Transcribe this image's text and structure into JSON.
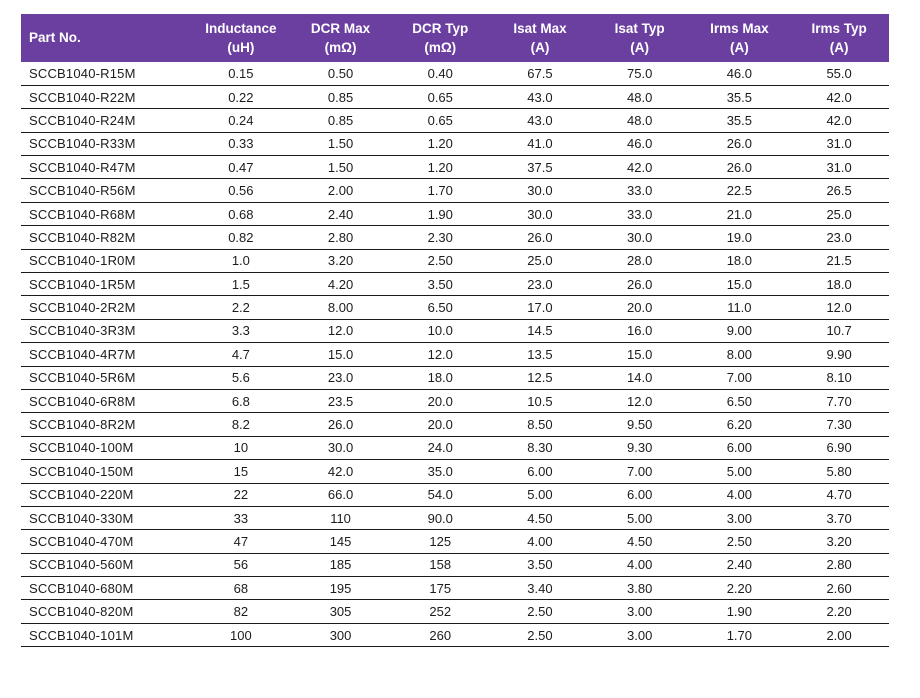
{
  "colors": {
    "header_bg": "#6B3FA0",
    "header_text": "#FFFFFF",
    "row_line": "#1A1A1A",
    "body_text": "#1C1C1C",
    "page_bg": "#FFFFFF"
  },
  "table": {
    "columns": [
      {
        "label": "Part No.",
        "unit": ""
      },
      {
        "label": "Inductance",
        "unit": "(uH)"
      },
      {
        "label": "DCR Max",
        "unit": "(mΩ)"
      },
      {
        "label": "DCR Typ",
        "unit": "(mΩ)"
      },
      {
        "label": "Isat Max",
        "unit": "(A)"
      },
      {
        "label": "Isat Typ",
        "unit": "(A)"
      },
      {
        "label": "Irms Max",
        "unit": "(A)"
      },
      {
        "label": "Irms Typ",
        "unit": "(A)"
      }
    ],
    "rows": [
      [
        "SCCB1040-R15M",
        "0.15",
        "0.50",
        "0.40",
        "67.5",
        "75.0",
        "46.0",
        "55.0"
      ],
      [
        "SCCB1040-R22M",
        "0.22",
        "0.85",
        "0.65",
        "43.0",
        "48.0",
        "35.5",
        "42.0"
      ],
      [
        "SCCB1040-R24M",
        "0.24",
        "0.85",
        "0.65",
        "43.0",
        "48.0",
        "35.5",
        "42.0"
      ],
      [
        "SCCB1040-R33M",
        "0.33",
        "1.50",
        "1.20",
        "41.0",
        "46.0",
        "26.0",
        "31.0"
      ],
      [
        "SCCB1040-R47M",
        "0.47",
        "1.50",
        "1.20",
        "37.5",
        "42.0",
        "26.0",
        "31.0"
      ],
      [
        "SCCB1040-R56M",
        "0.56",
        "2.00",
        "1.70",
        "30.0",
        "33.0",
        "22.5",
        "26.5"
      ],
      [
        "SCCB1040-R68M",
        "0.68",
        "2.40",
        "1.90",
        "30.0",
        "33.0",
        "21.0",
        "25.0"
      ],
      [
        "SCCB1040-R82M",
        "0.82",
        "2.80",
        "2.30",
        "26.0",
        "30.0",
        "19.0",
        "23.0"
      ],
      [
        "SCCB1040-1R0M",
        "1.0",
        "3.20",
        "2.50",
        "25.0",
        "28.0",
        "18.0",
        "21.5"
      ],
      [
        "SCCB1040-1R5M",
        "1.5",
        "4.20",
        "3.50",
        "23.0",
        "26.0",
        "15.0",
        "18.0"
      ],
      [
        "SCCB1040-2R2M",
        "2.2",
        "8.00",
        "6.50",
        "17.0",
        "20.0",
        "11.0",
        "12.0"
      ],
      [
        "SCCB1040-3R3M",
        "3.3",
        "12.0",
        "10.0",
        "14.5",
        "16.0",
        "9.00",
        "10.7"
      ],
      [
        "SCCB1040-4R7M",
        "4.7",
        "15.0",
        "12.0",
        "13.5",
        "15.0",
        "8.00",
        "9.90"
      ],
      [
        "SCCB1040-5R6M",
        "5.6",
        "23.0",
        "18.0",
        "12.5",
        "14.0",
        "7.00",
        "8.10"
      ],
      [
        "SCCB1040-6R8M",
        "6.8",
        "23.5",
        "20.0",
        "10.5",
        "12.0",
        "6.50",
        "7.70"
      ],
      [
        "SCCB1040-8R2M",
        "8.2",
        "26.0",
        "20.0",
        "8.50",
        "9.50",
        "6.20",
        "7.30"
      ],
      [
        "SCCB1040-100M",
        "10",
        "30.0",
        "24.0",
        "8.30",
        "9.30",
        "6.00",
        "6.90"
      ],
      [
        "SCCB1040-150M",
        "15",
        "42.0",
        "35.0",
        "6.00",
        "7.00",
        "5.00",
        "5.80"
      ],
      [
        "SCCB1040-220M",
        "22",
        "66.0",
        "54.0",
        "5.00",
        "6.00",
        "4.00",
        "4.70"
      ],
      [
        "SCCB1040-330M",
        "33",
        "110",
        "90.0",
        "4.50",
        "5.00",
        "3.00",
        "3.70"
      ],
      [
        "SCCB1040-470M",
        "47",
        "145",
        "125",
        "4.00",
        "4.50",
        "2.50",
        "3.20"
      ],
      [
        "SCCB1040-560M",
        "56",
        "185",
        "158",
        "3.50",
        "4.00",
        "2.40",
        "2.80"
      ],
      [
        "SCCB1040-680M",
        "68",
        "195",
        "175",
        "3.40",
        "3.80",
        "2.20",
        "2.60"
      ],
      [
        "SCCB1040-820M",
        "82",
        "305",
        "252",
        "2.50",
        "3.00",
        "1.90",
        "2.20"
      ],
      [
        "SCCB1040-101M",
        "100",
        "300",
        "260",
        "2.50",
        "3.00",
        "1.70",
        "2.00"
      ]
    ]
  }
}
